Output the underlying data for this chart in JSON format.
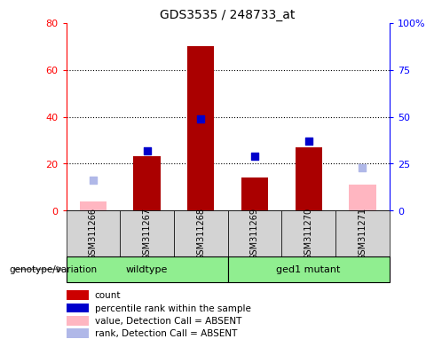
{
  "title": "GDS3535 / 248733_at",
  "samples": [
    "GSM311266",
    "GSM311267",
    "GSM311268",
    "GSM311269",
    "GSM311270",
    "GSM311271"
  ],
  "groups": [
    "wildtype",
    "wildtype",
    "wildtype",
    "ged1 mutant",
    "ged1 mutant",
    "ged1 mutant"
  ],
  "group_spans": [
    {
      "label": "wildtype",
      "start": 0,
      "end": 3,
      "color": "#90EE90"
    },
    {
      "label": "ged1 mutant",
      "start": 3,
      "end": 6,
      "color": "#90EE90"
    }
  ],
  "count_values": [
    null,
    23,
    70,
    14,
    27,
    null
  ],
  "percentile_values": [
    null,
    32,
    49,
    29,
    37,
    null
  ],
  "absent_value": [
    4,
    null,
    null,
    null,
    null,
    11
  ],
  "absent_rank": [
    16,
    null,
    null,
    null,
    null,
    23
  ],
  "ylim_left": [
    0,
    80
  ],
  "ylim_right": [
    0,
    100
  ],
  "yticks_left": [
    0,
    20,
    40,
    60,
    80
  ],
  "yticks_right": [
    0,
    25,
    50,
    75,
    100
  ],
  "ytick_labels_left": [
    "0",
    "20",
    "40",
    "60",
    "80"
  ],
  "ytick_labels_right": [
    "0",
    "25",
    "50",
    "75",
    "100%"
  ],
  "bar_color": "#aa0000",
  "dot_color": "#0000cc",
  "absent_val_color": "#ffb6c1",
  "absent_rank_color": "#b0b8e8",
  "sample_box_color": "#d3d3d3",
  "legend_items": [
    {
      "label": "count",
      "color": "#cc0000"
    },
    {
      "label": "percentile rank within the sample",
      "color": "#0000cc"
    },
    {
      "label": "value, Detection Call = ABSENT",
      "color": "#ffb6c1"
    },
    {
      "label": "rank, Detection Call = ABSENT",
      "color": "#b0b8e8"
    }
  ],
  "bar_width": 0.5,
  "dot_size": 40,
  "genotype_label": "genotype/variation"
}
